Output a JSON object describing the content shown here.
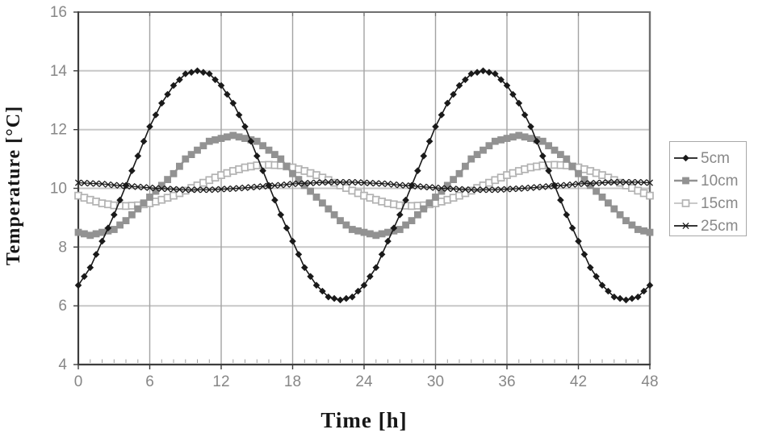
{
  "chart_data": {
    "type": "line",
    "title": "",
    "xlabel": "Time [h]",
    "ylabel": "Temperature [°C]",
    "xlim": [
      0,
      48
    ],
    "ylim": [
      4,
      16
    ],
    "xticks": [
      0,
      6,
      12,
      18,
      24,
      30,
      36,
      42,
      48
    ],
    "yticks": [
      4,
      6,
      8,
      10,
      12,
      14,
      16
    ],
    "x_minor_step": 1,
    "grid": true,
    "legend_position": "right",
    "x": [
      0,
      1,
      2,
      3,
      4,
      5,
      6,
      7,
      8,
      9,
      10,
      11,
      12,
      13,
      14,
      15,
      16,
      17,
      18,
      19,
      20,
      21,
      22,
      23,
      24,
      25,
      26,
      27,
      28,
      29,
      30,
      31,
      32,
      33,
      34,
      35,
      36,
      37,
      38,
      39,
      40,
      41,
      42,
      43,
      44,
      45,
      46,
      47,
      48
    ],
    "series": [
      {
        "name": "5cm",
        "marker": "diamond",
        "color": "#1a1a1a",
        "line_width": 1.6,
        "marker_size": 8.6,
        "values": [
          6.7,
          7.3,
          8.2,
          9.1,
          10.1,
          11.1,
          12.1,
          12.9,
          13.5,
          13.9,
          14.0,
          13.9,
          13.5,
          12.9,
          12.1,
          11.1,
          10.1,
          9.1,
          8.2,
          7.3,
          6.7,
          6.3,
          6.2,
          6.3,
          6.7,
          7.3,
          8.2,
          9.1,
          10.1,
          11.1,
          12.1,
          12.9,
          13.5,
          13.9,
          14.0,
          13.9,
          13.5,
          12.9,
          12.1,
          11.1,
          10.1,
          9.1,
          8.2,
          7.3,
          6.7,
          6.3,
          6.2,
          6.3,
          6.7
        ]
      },
      {
        "name": "10cm",
        "marker": "square",
        "color": "#929292",
        "line_width": 2.5,
        "marker_size": 8.8,
        "values": [
          8.5,
          8.4,
          8.5,
          8.6,
          8.9,
          9.3,
          9.7,
          10.1,
          10.5,
          11.0,
          11.3,
          11.6,
          11.7,
          11.8,
          11.7,
          11.6,
          11.3,
          11.0,
          10.5,
          10.1,
          9.7,
          9.3,
          8.9,
          8.6,
          8.5,
          8.4,
          8.5,
          8.6,
          8.9,
          9.3,
          9.7,
          10.1,
          10.5,
          11.0,
          11.3,
          11.6,
          11.7,
          11.8,
          11.7,
          11.6,
          11.3,
          11.0,
          10.5,
          10.1,
          9.7,
          9.3,
          8.9,
          8.6,
          8.5
        ]
      },
      {
        "name": "15cm",
        "marker": "open-square",
        "color": "#c2c2c2",
        "marker_edge": "#b2b2b2",
        "line_width": 1.6,
        "marker_size": 8.0,
        "values": [
          9.75,
          9.61,
          9.49,
          9.42,
          9.4,
          9.42,
          9.49,
          9.61,
          9.75,
          9.92,
          10.1,
          10.28,
          10.45,
          10.59,
          10.71,
          10.78,
          10.8,
          10.78,
          10.71,
          10.59,
          10.45,
          10.28,
          10.1,
          9.92,
          9.75,
          9.61,
          9.49,
          9.42,
          9.4,
          9.42,
          9.49,
          9.61,
          9.75,
          9.92,
          10.1,
          10.28,
          10.45,
          10.59,
          10.71,
          10.78,
          10.8,
          10.78,
          10.71,
          10.59,
          10.45,
          10.28,
          10.1,
          9.92,
          9.75
        ]
      },
      {
        "name": "25cm",
        "marker": "x",
        "color": "#1a1a1a",
        "line_width": 1.2,
        "marker_size": 7.2,
        "values": [
          10.19,
          10.17,
          10.15,
          10.11,
          10.08,
          10.05,
          10.02,
          9.99,
          9.97,
          9.95,
          9.95,
          9.95,
          9.97,
          9.99,
          10.02,
          10.05,
          10.08,
          10.11,
          10.15,
          10.17,
          10.19,
          10.21,
          10.21,
          10.21,
          10.19,
          10.17,
          10.15,
          10.11,
          10.08,
          10.05,
          10.02,
          9.99,
          9.97,
          9.95,
          9.95,
          9.95,
          9.97,
          9.99,
          10.02,
          10.05,
          10.08,
          10.11,
          10.15,
          10.17,
          10.19,
          10.21,
          10.21,
          10.21,
          10.19
        ]
      }
    ]
  },
  "colors": {
    "grid_h": "#c7c7c7",
    "grid_v": "#a3a3a3",
    "axis": "#3d3d3d",
    "frame": "#6f6f6f",
    "tick_label": "#878787",
    "legend_border": "#a8a8a8",
    "legend_text": "#888888"
  }
}
